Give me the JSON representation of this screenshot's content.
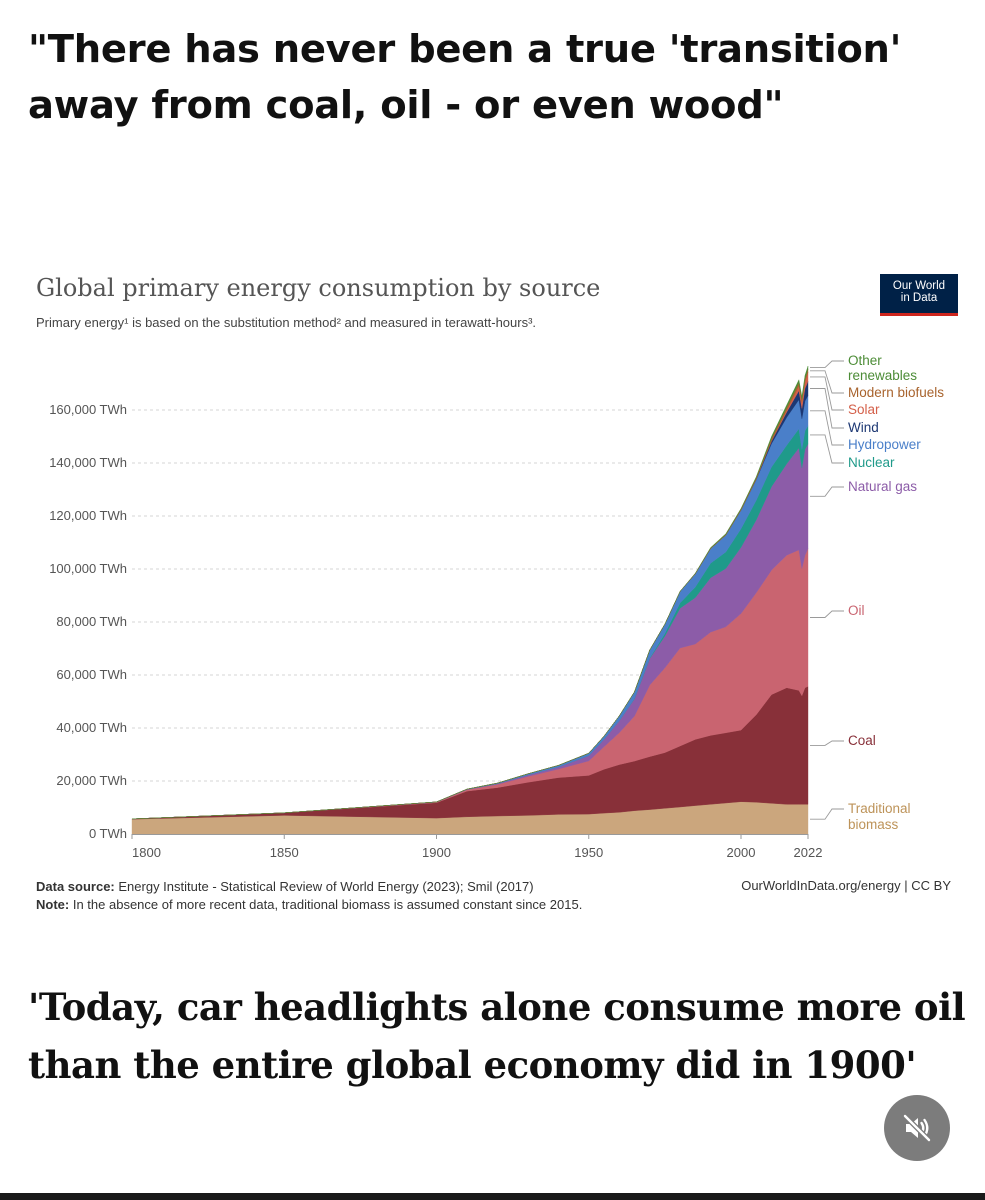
{
  "headline": "\"There has never been a true 'transition' away from coal, oil - or even wood\"",
  "logo": {
    "line1": "Our World",
    "line2": "in Data"
  },
  "chart_data": {
    "type": "area",
    "stacked": true,
    "title": "Global primary energy consumption by source",
    "subtitle": "Primary energy¹ is based on the substitution method² and measured in terawatt-hours³.",
    "x_ticks": [
      "1800",
      "1850",
      "1900",
      "1950",
      "2000",
      "2022"
    ],
    "x_tick_values": [
      1800,
      1850,
      1900,
      1950,
      2000,
      2022
    ],
    "y_ticks": [
      "0 TWh",
      "20,000 TWh",
      "40,000 TWh",
      "60,000 TWh",
      "80,000 TWh",
      "100,000 TWh",
      "120,000 TWh",
      "140,000 TWh",
      "160,000 TWh"
    ],
    "y_tick_values": [
      0,
      20000,
      40000,
      60000,
      80000,
      100000,
      120000,
      140000,
      160000
    ],
    "xlim": [
      1800,
      2022
    ],
    "ylim": [
      0,
      180000
    ],
    "grid": true,
    "legend_position": "right",
    "x": [
      1800,
      1850,
      1900,
      1910,
      1920,
      1930,
      1940,
      1950,
      1955,
      1960,
      1965,
      1970,
      1975,
      1980,
      1985,
      1990,
      1995,
      2000,
      2005,
      2010,
      2015,
      2019,
      2020,
      2021,
      2022
    ],
    "series": [
      {
        "name": "Traditional biomass",
        "color": "#cba67d",
        "values": [
          5600,
          7000,
          6000,
          6500,
          6800,
          7000,
          7400,
          7500,
          7900,
          8200,
          8800,
          9200,
          9700,
          10200,
          10700,
          11200,
          11700,
          12200,
          12000,
          11600,
          11200,
          11200,
          11200,
          11200,
          11200
        ]
      },
      {
        "name": "Coal",
        "color": "#883039",
        "values": [
          100,
          1000,
          5800,
          9700,
          10700,
          12500,
          13900,
          14600,
          16500,
          18000,
          18700,
          20000,
          21000,
          23000,
          25000,
          26000,
          26500,
          27000,
          33000,
          41000,
          44000,
          43000,
          41000,
          44000,
          44500
        ]
      },
      {
        "name": "Oil",
        "color": "#c96470",
        "values": [
          0,
          0,
          200,
          500,
          1200,
          2200,
          3200,
          5500,
          8500,
          12000,
          17000,
          27000,
          32000,
          37000,
          36000,
          39000,
          40000,
          44000,
          46000,
          47000,
          50000,
          53000,
          48000,
          50000,
          52000
        ]
      },
      {
        "name": "Natural gas",
        "color": "#8c5ca8",
        "values": [
          0,
          0,
          80,
          150,
          300,
          600,
          800,
          2000,
          2800,
          4500,
          6500,
          10000,
          12000,
          15000,
          17500,
          20500,
          22000,
          25000,
          27500,
          31500,
          34500,
          38500,
          38000,
          40000,
          39500
        ]
      },
      {
        "name": "Nuclear",
        "color": "#1f9a8a",
        "values": [
          0,
          0,
          0,
          0,
          0,
          0,
          0,
          0,
          0,
          10,
          100,
          200,
          1000,
          2000,
          4000,
          5500,
          6200,
          7000,
          7400,
          7400,
          7000,
          7200,
          7000,
          7000,
          6800
        ]
      },
      {
        "name": "Hydropower",
        "color": "#4a7fc9",
        "values": [
          0,
          0,
          20,
          100,
          200,
          400,
          600,
          900,
          1200,
          1800,
          2500,
          3000,
          3500,
          4300,
          5000,
          5500,
          6400,
          7000,
          7800,
          8800,
          10500,
          11000,
          11500,
          11200,
          11400
        ]
      },
      {
        "name": "Wind",
        "color": "#1c3773",
        "values": [
          0,
          0,
          0,
          0,
          0,
          0,
          0,
          0,
          0,
          0,
          0,
          0,
          0,
          0,
          0,
          10,
          20,
          80,
          250,
          900,
          2000,
          3400,
          3900,
          4700,
          5400
        ]
      },
      {
        "name": "Solar",
        "color": "#d4604a",
        "values": [
          0,
          0,
          0,
          0,
          0,
          0,
          0,
          0,
          0,
          0,
          0,
          0,
          0,
          0,
          0,
          0,
          0,
          5,
          20,
          200,
          700,
          1800,
          2200,
          2600,
          3400
        ]
      },
      {
        "name": "Modern biofuels",
        "color": "#a8632d",
        "values": [
          0,
          0,
          0,
          0,
          0,
          0,
          0,
          0,
          0,
          0,
          0,
          0,
          0,
          50,
          100,
          150,
          200,
          250,
          400,
          900,
          1100,
          1200,
          1150,
          1150,
          1200
        ]
      },
      {
        "name": "Other renewables",
        "color": "#4c8c36",
        "values": [
          0,
          0,
          0,
          0,
          0,
          0,
          0,
          0,
          0,
          0,
          0,
          0,
          0,
          30,
          100,
          200,
          300,
          300,
          400,
          700,
          900,
          1100,
          1100,
          1200,
          1200
        ]
      }
    ],
    "legend": [
      {
        "label": "Other",
        "color": "#4c8c36"
      },
      {
        "label": "renewables",
        "color": "#4c8c36"
      },
      {
        "label": "Modern biofuels",
        "color": "#a8632d"
      },
      {
        "label": "Solar",
        "color": "#d4604a"
      },
      {
        "label": "Wind",
        "color": "#1c3773"
      },
      {
        "label": "Hydropower",
        "color": "#4a7fc9"
      },
      {
        "label": "Nuclear",
        "color": "#1f9a8a"
      },
      {
        "label": "Natural gas",
        "color": "#8c5ca8"
      },
      {
        "label": "Oil",
        "color": "#c96470"
      },
      {
        "label": "Coal",
        "color": "#883039"
      },
      {
        "label": "Traditional",
        "color": "#bd9359"
      },
      {
        "label": "biomass",
        "color": "#bd9359"
      }
    ]
  },
  "footer": {
    "source_label": "Data source:",
    "source_text": "Energy Institute - Statistical Review of World Energy (2023); Smil (2017)",
    "note_label": "Note:",
    "note_text": "In the absence of more recent data, traditional biomass is assumed constant since 2015.",
    "credit": "OurWorldInData.org/energy | CC BY"
  },
  "quote": "'Today, car headlights alone consume more oil than the entire global economy did in 1900'",
  "mute_icon": "speaker-muted-icon"
}
